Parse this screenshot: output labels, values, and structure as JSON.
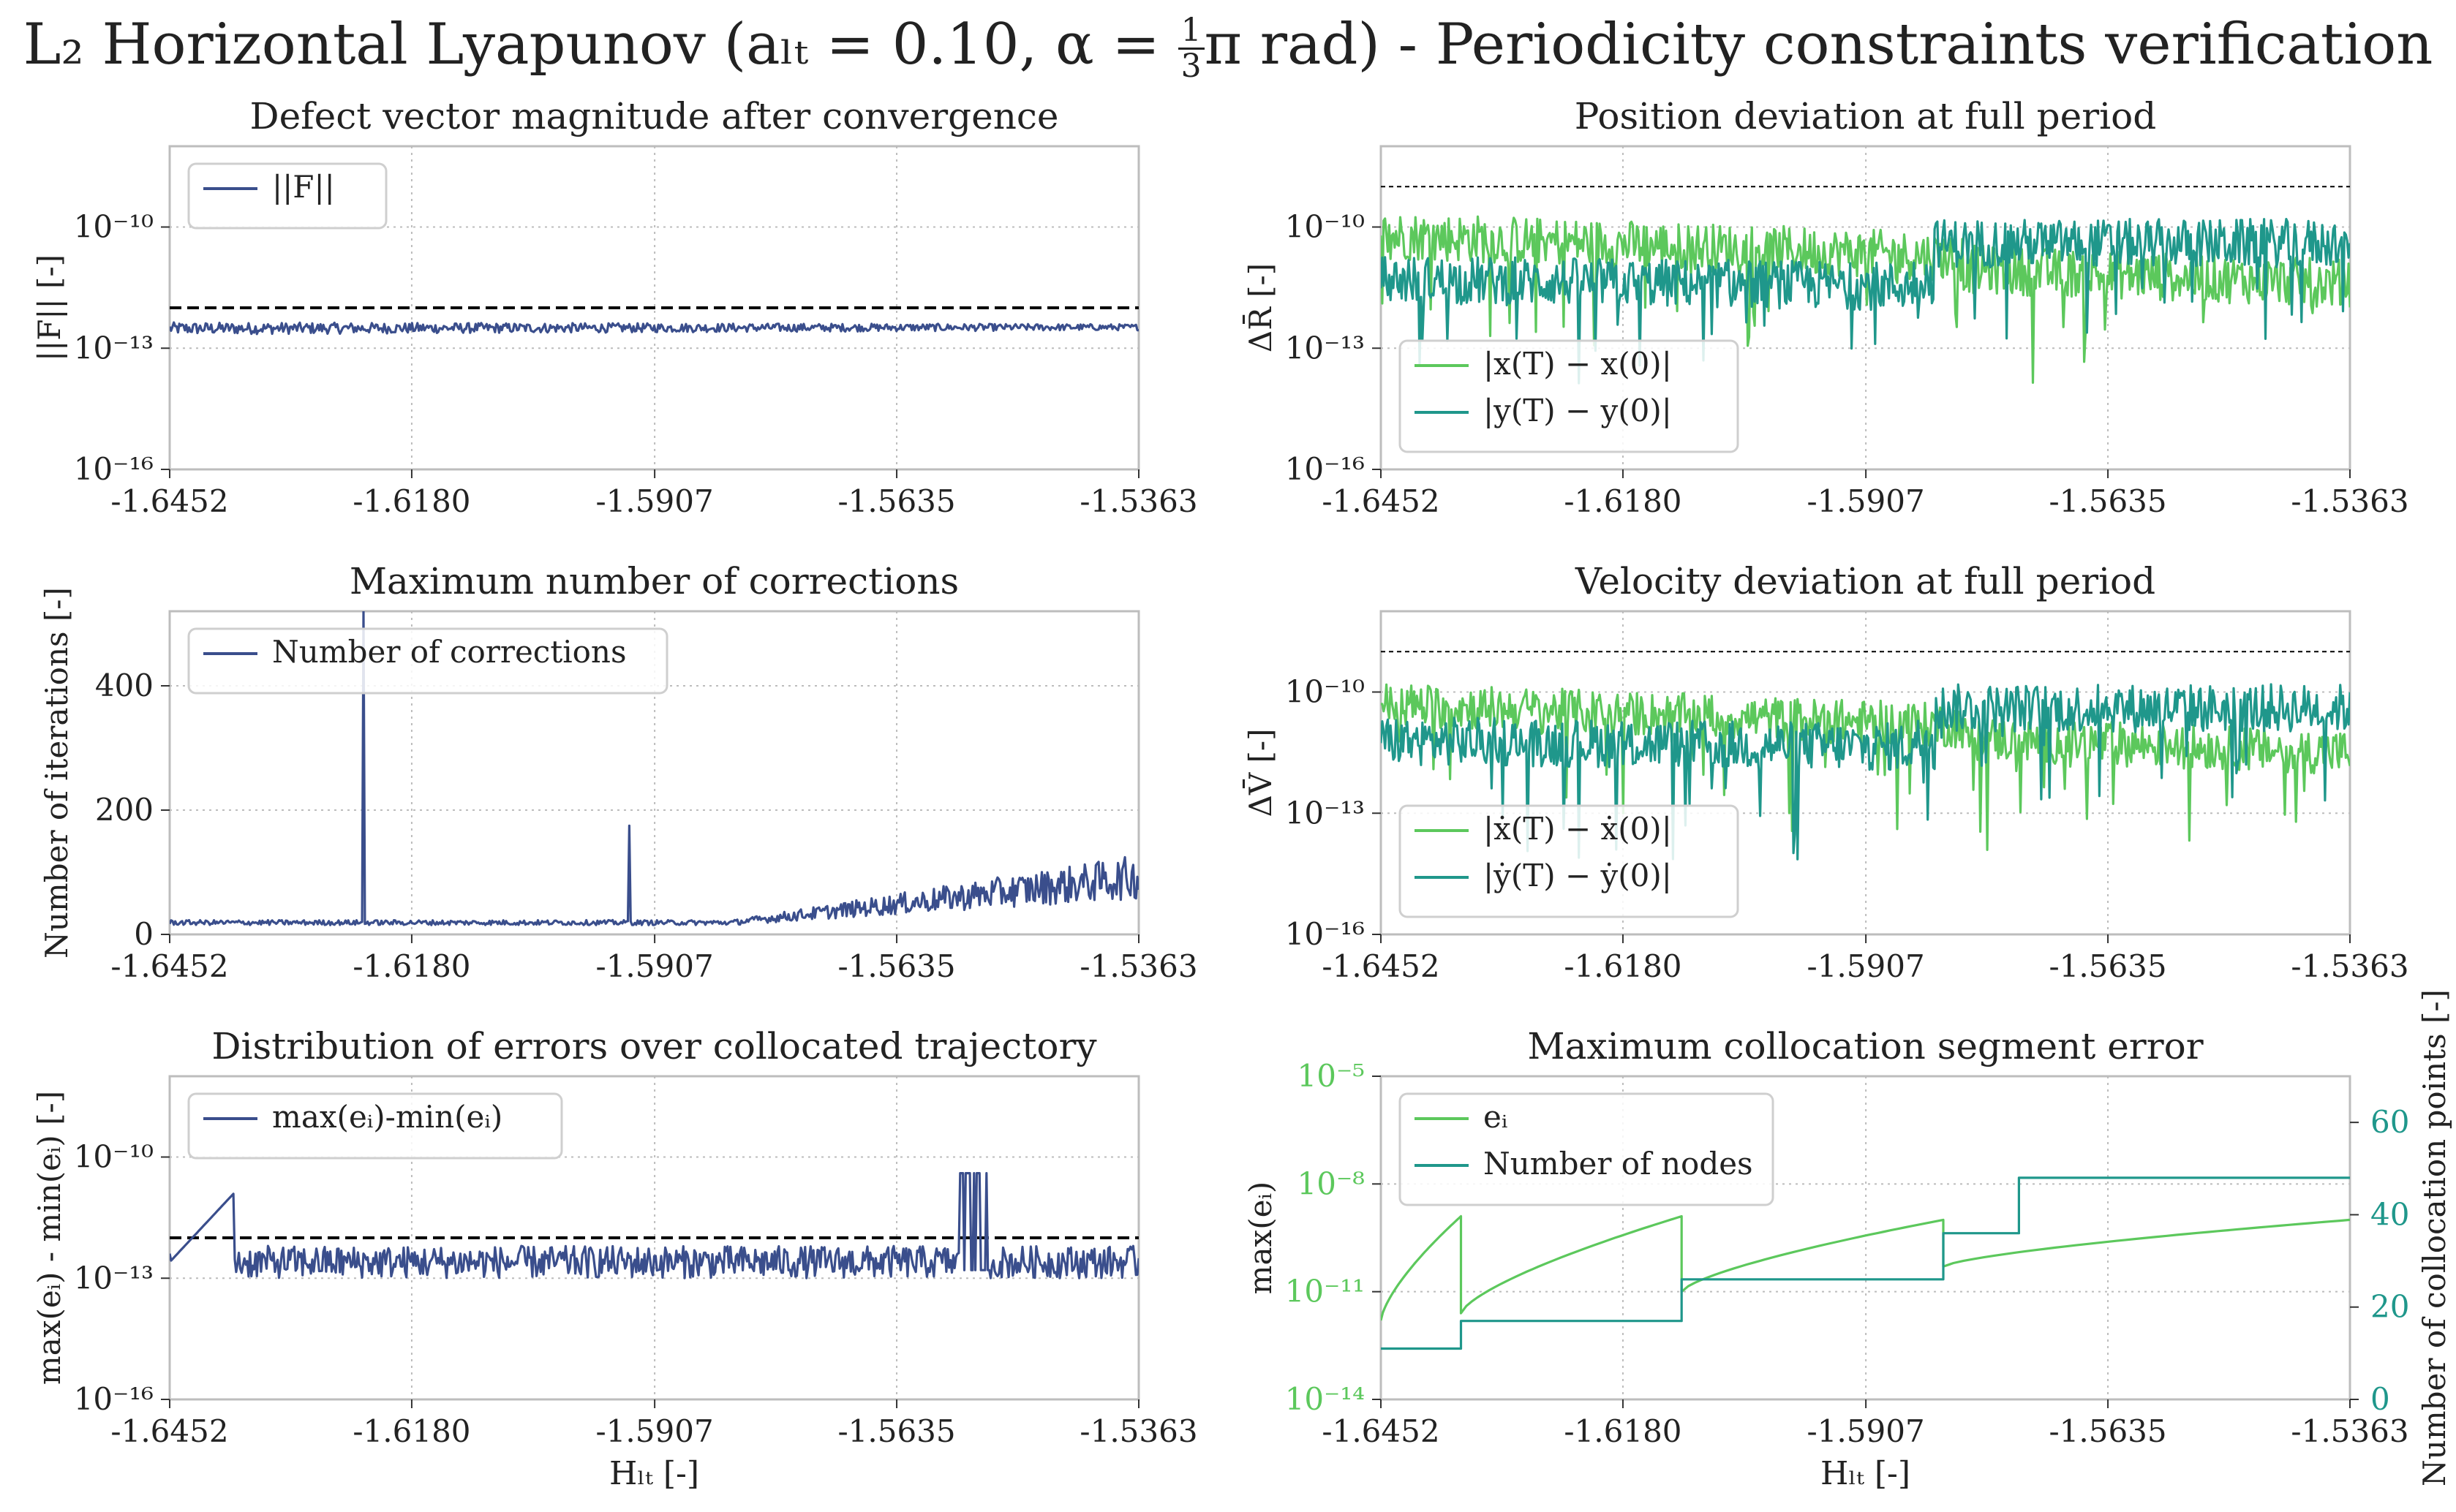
{
  "suptitle": {
    "pre": "L₂ Horizontal Lyapunov (aₗₜ = 0.10, α = ",
    "frac_num": "1",
    "frac_den": "3",
    "post": "π rad) - Periodicity constraints verification"
  },
  "colors": {
    "navy": "#3a4e8c",
    "light_green": "#5cc85c",
    "teal": "#1f978b",
    "grid": "#bcbcbc",
    "frame": "#bdbdbd",
    "threshold": "#000000"
  },
  "chart_data": [
    {
      "id": "defect",
      "type": "line",
      "title": "Defect vector magnitude after convergence",
      "ylabel": "||F|| [-]",
      "xlabel": "",
      "yscale": "log",
      "ylim_exp": [
        -16,
        -8
      ],
      "yticks": [
        "10⁻¹⁰",
        "10⁻¹³",
        "10⁻¹⁶"
      ],
      "xlim": [
        -1.6452,
        -1.5363
      ],
      "xticks": [
        "-1.6452",
        "-1.6180",
        "-1.5907",
        "-1.5635",
        "-1.5363"
      ],
      "grid": true,
      "legend": "upper-left",
      "threshold_exp": -12,
      "series": [
        {
          "name": "||F||",
          "color": "#3a4e8c",
          "kind": "noise",
          "base": -12.45,
          "amp": 0.3
        }
      ]
    },
    {
      "id": "position",
      "type": "line",
      "title": "Position deviation at full period",
      "ylabel": "ΔR̄ [-]",
      "xlabel": "",
      "yscale": "log",
      "ylim_exp": [
        -16,
        -8
      ],
      "yticks": [
        "10⁻¹⁰",
        "10⁻¹³",
        "10⁻¹⁶"
      ],
      "xlim": [
        -1.6452,
        -1.5363
      ],
      "xticks": [
        "-1.6452",
        "-1.6180",
        "-1.5907",
        "-1.5635",
        "-1.5363"
      ],
      "grid": true,
      "legend": "lower-left",
      "threshold_exp": -9,
      "series": [
        {
          "name": "|x(T) − x(0)|",
          "color": "#5cc85c",
          "kind": "noise-down",
          "base": -10.2,
          "amp": 1.2
        },
        {
          "name": "|y(T) − y(0)|",
          "color": "#1f978b",
          "kind": "noise-step",
          "base": -11.3,
          "amp": 1.2
        }
      ]
    },
    {
      "id": "corrections",
      "type": "line",
      "title": "Maximum number of corrections",
      "ylabel": "Number of iterations [-]",
      "xlabel": "",
      "yscale": "linear",
      "ylim": [
        0,
        520
      ],
      "yticks": [
        "0",
        "200",
        "400"
      ],
      "xlim": [
        -1.6452,
        -1.5363
      ],
      "xticks": [
        "-1.6452",
        "-1.6180",
        "-1.5907",
        "-1.5635",
        "-1.5363"
      ],
      "grid": true,
      "legend": "upper-left",
      "series": [
        {
          "name": "Number of corrections",
          "color": "#3a4e8c",
          "kind": "corrections"
        }
      ]
    },
    {
      "id": "velocity",
      "type": "line",
      "title": "Velocity deviation at full period",
      "ylabel": "ΔV̄ [-]",
      "xlabel": "",
      "yscale": "log",
      "ylim_exp": [
        -16,
        -8
      ],
      "yticks": [
        "10⁻¹⁰",
        "10⁻¹³",
        "10⁻¹⁶"
      ],
      "xlim": [
        -1.6452,
        -1.5363
      ],
      "xticks": [
        "-1.6452",
        "-1.6180",
        "-1.5907",
        "-1.5635",
        "-1.5363"
      ],
      "grid": true,
      "legend": "lower-left",
      "threshold_exp": -9,
      "series": [
        {
          "name": "|ẋ(T) − ẋ(0)|",
          "color": "#5cc85c",
          "kind": "noise-down",
          "base": -10.3,
          "amp": 1.1
        },
        {
          "name": "|ẏ(T) − ẏ(0)|",
          "color": "#1f978b",
          "kind": "noise-step",
          "base": -11.2,
          "amp": 1.2
        }
      ]
    },
    {
      "id": "distribution",
      "type": "line",
      "title": "Distribution of errors over collocated trajectory",
      "ylabel": "max(eᵢ) - min(eᵢ) [-]",
      "xlabel": "Hₗₜ [-]",
      "yscale": "log",
      "ylim_exp": [
        -16,
        -8
      ],
      "yticks": [
        "10⁻¹⁰",
        "10⁻¹³",
        "10⁻¹⁶"
      ],
      "xlim": [
        -1.6452,
        -1.5363
      ],
      "xticks": [
        "-1.6452",
        "-1.6180",
        "-1.5907",
        "-1.5635",
        "-1.5363"
      ],
      "grid": true,
      "legend": "upper-left",
      "threshold_exp": -12,
      "series": [
        {
          "name": "max(eᵢ)-min(eᵢ)",
          "color": "#3a4e8c",
          "kind": "distribution"
        }
      ]
    },
    {
      "id": "segment",
      "type": "line",
      "title": "Maximum collocation segment error",
      "ylabel": "max(eᵢ)",
      "ylabel_right": "Number of collocation points [-]",
      "xlabel": "Hₗₜ [-]",
      "yscale": "log",
      "ylim_exp": [
        -14,
        -5
      ],
      "yticks": [
        "10⁻⁵",
        "10⁻⁸",
        "10⁻¹¹",
        "10⁻¹⁴"
      ],
      "yticks_right": [
        "0",
        "20",
        "40",
        "60"
      ],
      "ylim_right": [
        0,
        70
      ],
      "xlim": [
        -1.6452,
        -1.5363
      ],
      "xticks": [
        "-1.6452",
        "-1.6180",
        "-1.5907",
        "-1.5635",
        "-1.5363"
      ],
      "grid": true,
      "legend": "upper-left",
      "series": [
        {
          "name": "eᵢ",
          "color": "#5cc85c",
          "kind": "segment-error"
        },
        {
          "name": "Number of nodes",
          "color": "#1f978b",
          "kind": "nodes"
        }
      ]
    }
  ]
}
